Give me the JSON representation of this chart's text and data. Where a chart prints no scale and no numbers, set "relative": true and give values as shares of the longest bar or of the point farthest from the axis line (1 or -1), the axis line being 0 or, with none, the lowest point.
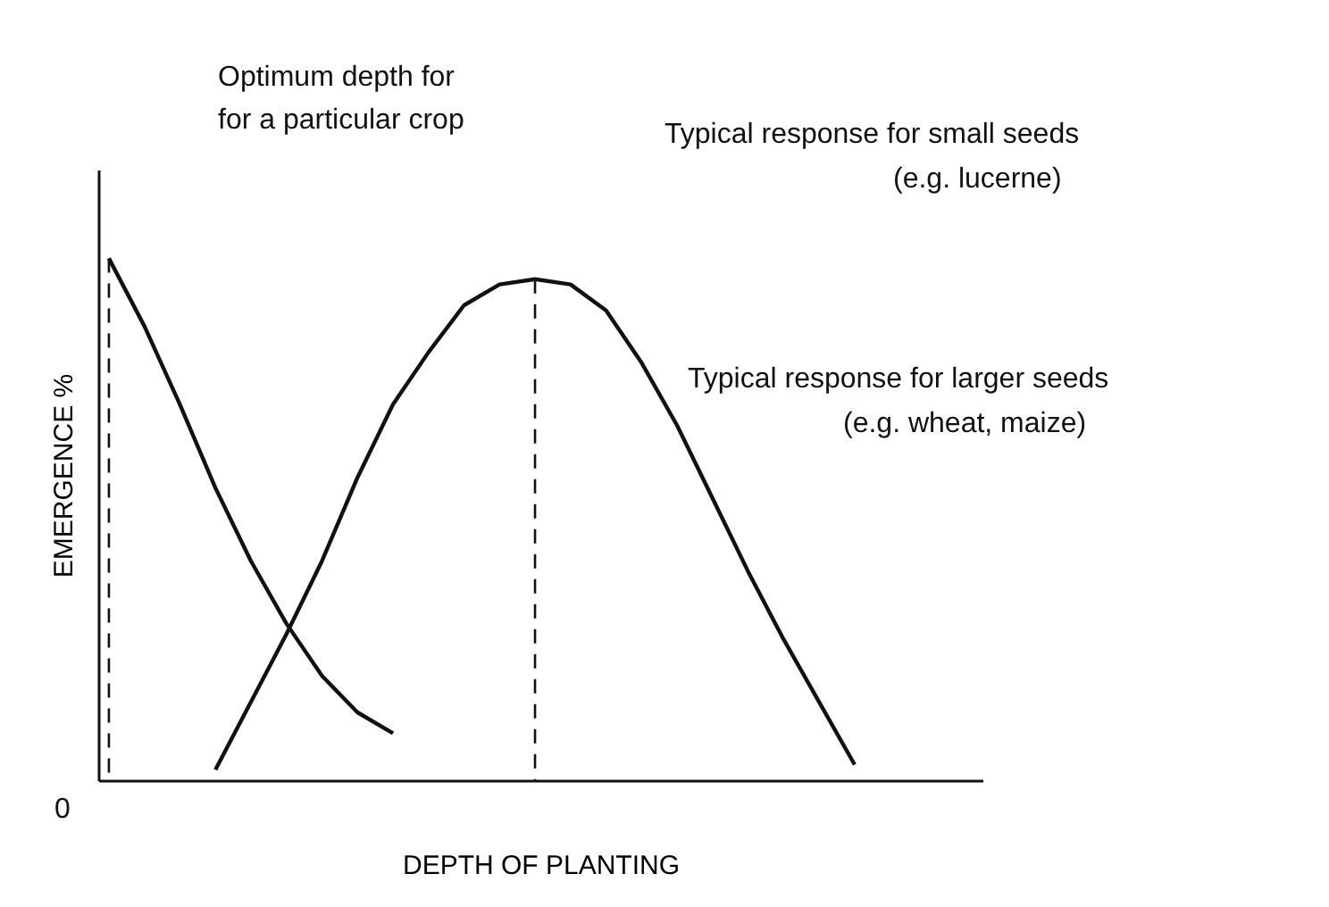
{
  "chart_data": {
    "type": "line",
    "relative": true,
    "xlabel": "DEPTH OF PLANTING",
    "ylabel": "EMERGENCE %",
    "categories": [
      null,
      null,
      null,
      null,
      null,
      null,
      null,
      null,
      null,
      null,
      null,
      null,
      null,
      null,
      null,
      null,
      null,
      null,
      null,
      null,
      null,
      null
    ],
    "series": [
      {
        "color": "#111111",
        "values": [
          1.0,
          0.87,
          0.72,
          0.56,
          0.42,
          0.3,
          0.2,
          0.13,
          0.09,
          null,
          null,
          null,
          null,
          null,
          null,
          null,
          null,
          null,
          null,
          null,
          null,
          null
        ]
      },
      {
        "color": "#111111",
        "values": [
          null,
          null,
          null,
          0.02,
          0.15,
          0.28,
          0.42,
          0.58,
          0.72,
          0.82,
          0.91,
          0.95,
          0.96,
          0.95,
          0.9,
          0.8,
          0.68,
          0.54,
          0.4,
          0.27,
          0.15,
          0.03
        ]
      }
    ],
    "annotations": [
      "Optimum depth for",
      "for a particular crop",
      "Typical response for small seeds",
      "(e.g. lucerne)",
      "Typical response for larger seeds",
      "(e.g. wheat, maize)",
      "0"
    ],
    "legend": false,
    "grid": false,
    "marker": "none",
    "line_style": "solid"
  }
}
